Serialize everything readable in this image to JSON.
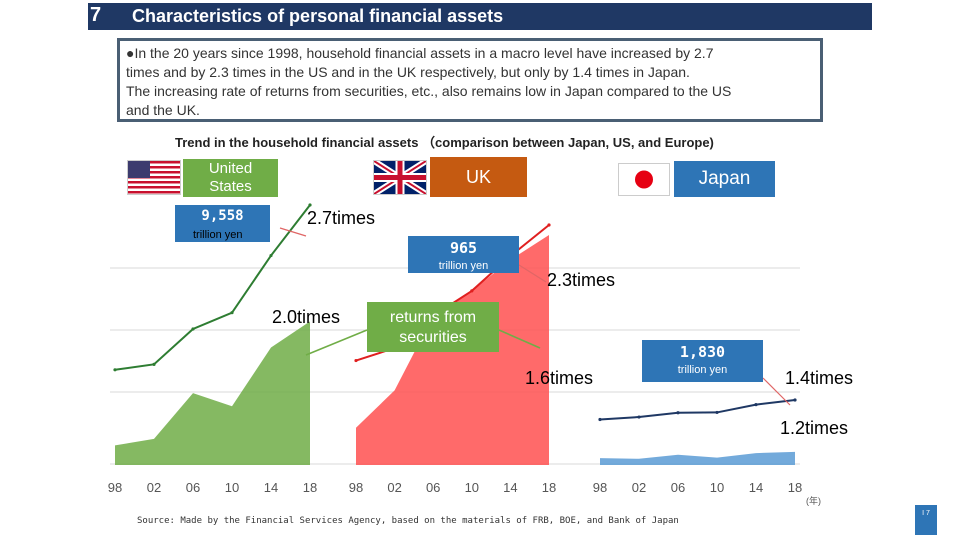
{
  "header": {
    "number": "7",
    "title": "Characteristics of personal financial assets"
  },
  "summary": {
    "line1": "●In the 20 years since 1998, household financial assets in a macro level have increased by 2.7",
    "line2": "times and by 2.3 times in the US and in the UK respectively, but only by 1.4 times in Japan.",
    "line3": "The increasing rate of returns from securities, etc., also remains low in Japan compared to the US",
    "line4": "and the UK."
  },
  "chart_heading": "Trend in the household financial assets （comparison between Japan, US, and Europe)",
  "annotations": {
    "returns_label_1": "returns from",
    "returns_label_2": "securities",
    "us_name_1": "United",
    "us_name_2": "States",
    "uk_name": "UK",
    "japan_name": "Japan",
    "us_value": "9,558",
    "uk_value": "965",
    "jp_value": "1,830",
    "unit": "trillion yen",
    "us_total_mult": "2.7times",
    "us_returns_mult": "2.0times",
    "uk_total_mult": "2.3times",
    "uk_returns_mult": "1.6times",
    "jp_total_mult": "1.4times",
    "jp_returns_mult": "1.2times",
    "x_unit": "(年)"
  },
  "colors": {
    "us": "#70ad47",
    "us_line": "#2e7d32",
    "uk": "#ff5050",
    "uk_line": "#e02020",
    "jp": "#5b9bd5",
    "jp_line": "#1f3864",
    "title_bar": "#1f3864"
  },
  "chart_data": [
    {
      "type": "area",
      "title": "United States",
      "x": [
        "98",
        "02",
        "06",
        "10",
        "14",
        "18"
      ],
      "series": [
        {
          "name": "total",
          "values": [
            3.5,
            3.7,
            5.0,
            5.6,
            7.7,
            9.558
          ]
        },
        {
          "name": "returns from securities",
          "values": [
            0.3,
            0.4,
            1.1,
            0.9,
            1.8,
            2.2
          ]
        }
      ],
      "total_multiple": "2.7times",
      "returns_multiple": "2.0times",
      "latest": "9,558",
      "unit": "trillion yen"
    },
    {
      "type": "area",
      "title": "UK",
      "x": [
        "98",
        "02",
        "06",
        "10",
        "14",
        "18"
      ],
      "series": [
        {
          "name": "total",
          "values": [
            420,
            470,
            600,
            700,
            840,
            965
          ]
        },
        {
          "name": "returns from securities",
          "values": [
            60,
            120,
            240,
            290,
            330,
            370
          ]
        }
      ],
      "total_multiple": "2.3times",
      "returns_multiple": "1.6times",
      "latest": "965",
      "unit": "trillion yen"
    },
    {
      "type": "area",
      "title": "Japan",
      "x": [
        "98",
        "02",
        "06",
        "10",
        "14",
        "18"
      ],
      "series": [
        {
          "name": "total",
          "values": [
            1280,
            1350,
            1470,
            1480,
            1700,
            1830
          ]
        },
        {
          "name": "returns from securities",
          "values": [
            120,
            110,
            180,
            130,
            210,
            230
          ]
        }
      ],
      "total_multiple": "1.4times",
      "returns_multiple": "1.2times",
      "latest": "1,830",
      "unit": "trillion yen"
    }
  ],
  "source": "Source: Made by the Financial Services Agency, based on the materials of FRB, BOE, and Bank of Japan",
  "page_badge": "I 7"
}
